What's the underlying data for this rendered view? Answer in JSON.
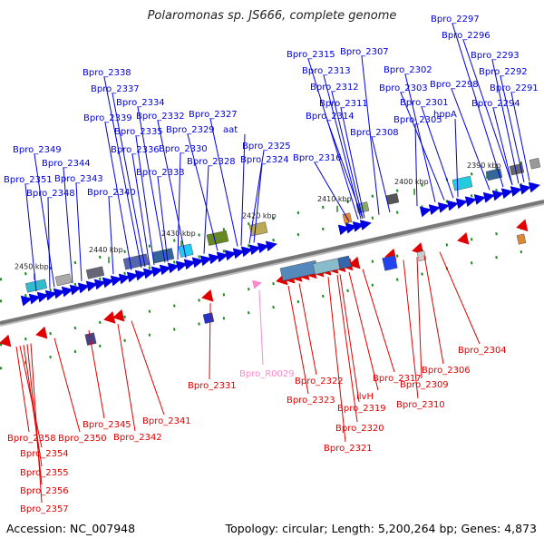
{
  "title": "Polaromonas sp. JS666, complete genome",
  "footer": {
    "accession": "Accession: NC_007948",
    "summary": "Topology: circular; Length: 5,200,264 bp; Genes: 4,873"
  },
  "colors": {
    "plus_strand": "#0000e0",
    "minus_strand": "#e00000",
    "rna": "#ff88cc",
    "tick": "#1a8a1a",
    "backbone": "#777777"
  },
  "ruler": [
    "2390 kbp",
    "2400 kbp",
    "2410 kbp",
    "2420 kbp",
    "2430 kbp",
    "2440 kbp",
    "2450 kbp"
  ],
  "plus_labels": [
    "Bpro_2297",
    "Bpro_2296",
    "Bpro_2293",
    "Bpro_2292",
    "Bpro_2291",
    "Bpro_2294",
    "Bpro_2298",
    "Bpro_2302",
    "Bpro_2303",
    "Bpro_2301",
    "hppA",
    "Bpro_2305",
    "Bpro_2308",
    "Bpro_2307",
    "Bpro_2315",
    "Bpro_2313",
    "Bpro_2312",
    "Bpro_2311",
    "Bpro_2314",
    "Bpro_2316",
    "Bpro_2327",
    "aat",
    "Bpro_2325",
    "Bpro_2324",
    "Bpro_2329",
    "Bpro_2328",
    "Bpro_2332",
    "Bpro_2330",
    "Bpro_2333",
    "Bpro_2334",
    "Bpro_2335",
    "Bpro_2336",
    "Bpro_2337",
    "Bpro_2338",
    "Bpro_2339",
    "Bpro_2340",
    "Bpro_2349",
    "Bpro_2344",
    "Bpro_2343",
    "Bpro_2351",
    "Bpro_2348"
  ],
  "minus_labels": [
    "Bpro_2304",
    "Bpro_2306",
    "Bpro_2309",
    "Bpro_2310",
    "Bpro_2317",
    "ilvH",
    "Bpro_2319",
    "Bpro_2320",
    "Bpro_2321",
    "Bpro_2322",
    "Bpro_2323",
    "Bpro_2331",
    "Bpro_2341",
    "Bpro_2342",
    "Bpro_2345",
    "Bpro_2350",
    "Bpro_2358",
    "Bpro_2354",
    "Bpro_2355",
    "Bpro_2356",
    "Bpro_2357"
  ],
  "rna_labels": [
    "Bpro_R0029"
  ]
}
